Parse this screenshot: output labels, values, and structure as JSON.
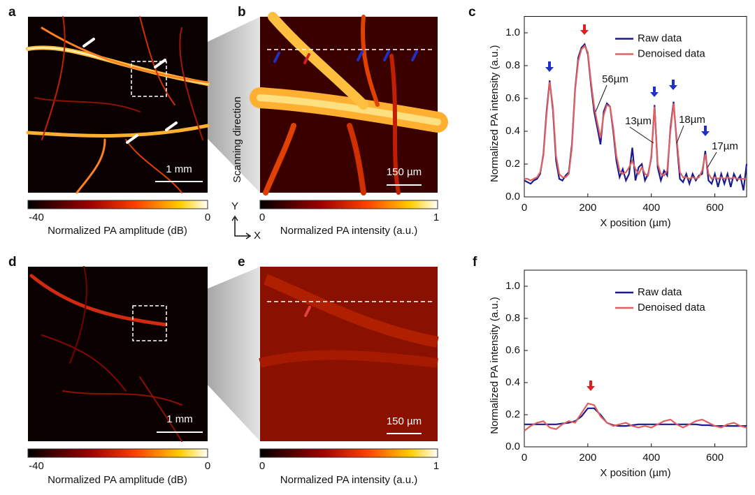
{
  "panel_labels": [
    "a",
    "b",
    "c",
    "d",
    "e",
    "f"
  ],
  "images": [
    {
      "scale_bar": "1 mm",
      "colorbar_min": "-40",
      "colorbar_max": "0",
      "colorbar_label": "Normalized PA amplitude (dB)"
    },
    {
      "scale_bar": "150 µm",
      "colorbar_min": "0",
      "colorbar_max": "1",
      "colorbar_label": "Normalized PA intensity (a.u.)"
    },
    {
      "scale_bar": "1 mm",
      "colorbar_min": "-40",
      "colorbar_max": "0",
      "colorbar_label": "Normalized PA amplitude (dB)"
    },
    {
      "scale_bar": "150 µm",
      "colorbar_min": "0",
      "colorbar_max": "1",
      "colorbar_label": "Normalized PA intensity (a.u.)"
    }
  ],
  "scanning_direction": "Scanning direction",
  "axis_y": "Y",
  "axis_x": "X",
  "chart_data": [
    {
      "type": "line",
      "xlabel": "X position (µm)",
      "ylabel": "Normalized PA intensity (a.u.)",
      "xlim": [
        0,
        700
      ],
      "ylim": [
        0,
        1.1
      ],
      "xticks": [
        0,
        200,
        400,
        600
      ],
      "yticks": [
        {
          "value": 0,
          "label": "0.0"
        },
        0.2,
        0.4,
        0.6,
        0.8,
        {
          "value": 1,
          "label": "1.0"
        }
      ],
      "x": [
        0,
        10,
        20,
        30,
        40,
        50,
        60,
        70,
        80,
        90,
        100,
        110,
        120,
        130,
        140,
        150,
        160,
        170,
        180,
        190,
        200,
        210,
        220,
        230,
        240,
        250,
        260,
        270,
        280,
        290,
        300,
        310,
        320,
        330,
        340,
        350,
        360,
        370,
        380,
        390,
        400,
        410,
        420,
        430,
        440,
        450,
        460,
        470,
        480,
        490,
        500,
        510,
        520,
        530,
        540,
        550,
        560,
        570,
        580,
        590,
        600,
        610,
        620,
        630,
        640,
        650,
        660,
        670,
        680,
        690,
        700
      ],
      "series": [
        {
          "name": "Raw data",
          "color": "#1a1a8c",
          "values": [
            0.1,
            0.09,
            0.08,
            0.1,
            0.11,
            0.14,
            0.26,
            0.52,
            0.71,
            0.53,
            0.22,
            0.11,
            0.1,
            0.13,
            0.15,
            0.32,
            0.66,
            0.85,
            0.91,
            0.93,
            0.87,
            0.68,
            0.52,
            0.42,
            0.32,
            0.52,
            0.57,
            0.55,
            0.4,
            0.22,
            0.12,
            0.17,
            0.1,
            0.14,
            0.3,
            0.1,
            0.18,
            0.2,
            0.1,
            0.14,
            0.24,
            0.56,
            0.18,
            0.1,
            0.16,
            0.13,
            0.42,
            0.58,
            0.33,
            0.11,
            0.09,
            0.14,
            0.08,
            0.14,
            0.1,
            0.13,
            0.14,
            0.28,
            0.1,
            0.08,
            0.14,
            0.06,
            0.14,
            0.08,
            0.14,
            0.06,
            0.14,
            0.1,
            0.13,
            0.04,
            0.2
          ]
        },
        {
          "name": "Denoised data",
          "color": "#e06060",
          "values": [
            0.11,
            0.11,
            0.1,
            0.11,
            0.12,
            0.15,
            0.25,
            0.5,
            0.7,
            0.55,
            0.25,
            0.14,
            0.12,
            0.12,
            0.14,
            0.3,
            0.65,
            0.83,
            0.9,
            0.92,
            0.88,
            0.7,
            0.55,
            0.45,
            0.36,
            0.5,
            0.56,
            0.55,
            0.42,
            0.25,
            0.16,
            0.14,
            0.15,
            0.18,
            0.22,
            0.17,
            0.14,
            0.18,
            0.14,
            0.13,
            0.25,
            0.55,
            0.2,
            0.14,
            0.13,
            0.16,
            0.4,
            0.57,
            0.35,
            0.15,
            0.12,
            0.12,
            0.11,
            0.12,
            0.11,
            0.12,
            0.16,
            0.26,
            0.14,
            0.11,
            0.12,
            0.11,
            0.12,
            0.11,
            0.12,
            0.11,
            0.12,
            0.11,
            0.11,
            0.11,
            0.11
          ]
        }
      ],
      "legend": "upper right",
      "annotations": [
        "56µm",
        "13µm",
        "18µm",
        "17µm"
      ]
    },
    {
      "type": "line",
      "xlabel": "X position (µm)",
      "ylabel": "Normalized PA intensity (a.u.)",
      "xlim": [
        0,
        700
      ],
      "ylim": [
        0,
        1.1
      ],
      "xticks": [
        0,
        200,
        400,
        600
      ],
      "yticks": [
        {
          "value": 0,
          "label": "0.0"
        },
        0.2,
        0.4,
        0.6,
        0.8,
        {
          "value": 1,
          "label": "1.0"
        }
      ],
      "x": [
        0,
        20,
        40,
        60,
        80,
        100,
        120,
        140,
        160,
        180,
        200,
        220,
        240,
        260,
        280,
        300,
        320,
        340,
        360,
        380,
        400,
        420,
        440,
        460,
        480,
        500,
        520,
        540,
        560,
        580,
        600,
        620,
        640,
        660,
        680,
        700
      ],
      "series": [
        {
          "name": "Raw data",
          "color": "#1a1a8c",
          "values": [
            0.14,
            0.14,
            0.14,
            0.14,
            0.14,
            0.14,
            0.145,
            0.15,
            0.16,
            0.19,
            0.24,
            0.24,
            0.2,
            0.15,
            0.135,
            0.13,
            0.13,
            0.135,
            0.14,
            0.14,
            0.14,
            0.14,
            0.14,
            0.14,
            0.14,
            0.14,
            0.14,
            0.14,
            0.135,
            0.135,
            0.13,
            0.13,
            0.13,
            0.13,
            0.13,
            0.13
          ]
        },
        {
          "name": "Denoised data",
          "color": "#e06060",
          "values": [
            0.1,
            0.13,
            0.15,
            0.16,
            0.12,
            0.11,
            0.14,
            0.16,
            0.15,
            0.21,
            0.27,
            0.26,
            0.19,
            0.15,
            0.13,
            0.14,
            0.15,
            0.13,
            0.12,
            0.13,
            0.12,
            0.14,
            0.16,
            0.17,
            0.14,
            0.12,
            0.14,
            0.16,
            0.17,
            0.15,
            0.13,
            0.12,
            0.14,
            0.15,
            0.13,
            0.12
          ]
        }
      ],
      "legend": "upper right",
      "annotations": []
    }
  ]
}
